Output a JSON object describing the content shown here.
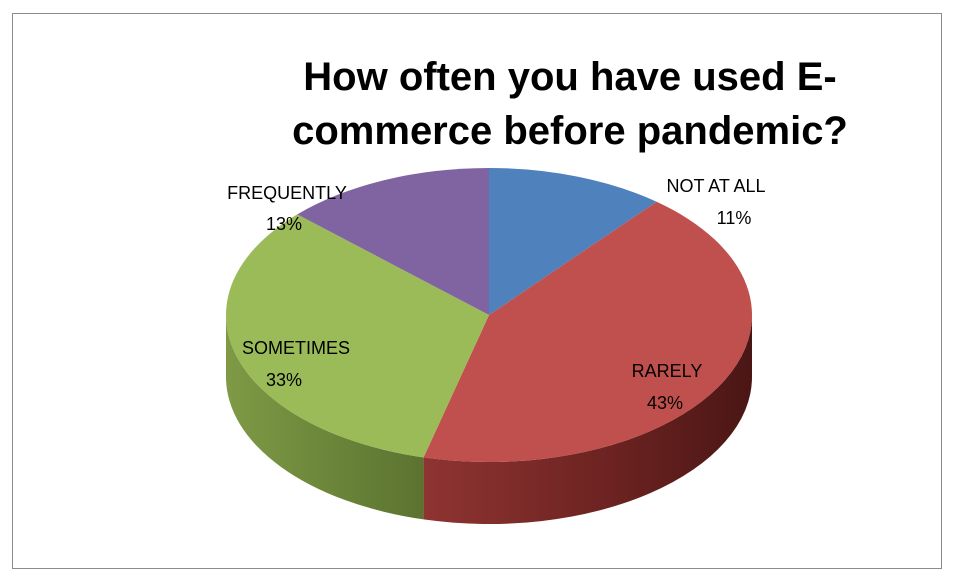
{
  "chart_data": {
    "type": "pie",
    "title_lines": [
      "How often you have used E-",
      "commerce before pandemic?"
    ],
    "three_d": true,
    "slices": [
      {
        "label": "NOT AT ALL",
        "value": 11,
        "value_label": "11%",
        "color": "#4f81bd"
      },
      {
        "label": "RARELY",
        "value": 43,
        "value_label": "43%",
        "color": "#c0504d"
      },
      {
        "label": "SOMETIMES",
        "value": 33,
        "value_label": "33%",
        "color": "#9bbb59"
      },
      {
        "label": "FREQUENTLY",
        "value": 13,
        "value_label": "13%",
        "color": "#8064a2"
      }
    ]
  }
}
